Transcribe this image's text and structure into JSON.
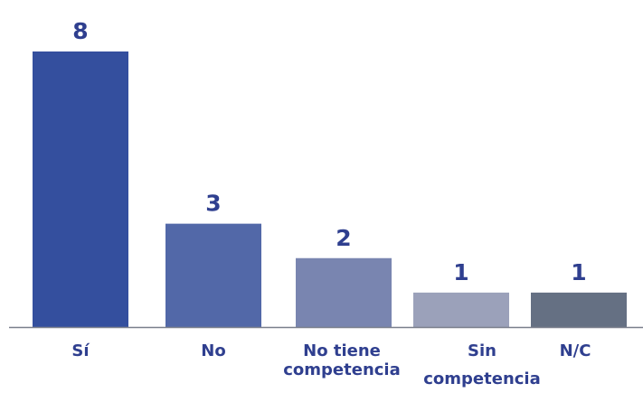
{
  "chart_data": {
    "type": "bar",
    "categories": [
      [
        "Sí"
      ],
      [
        "No"
      ],
      [
        "No tiene",
        "competencia"
      ],
      [
        "Sin",
        "competencia"
      ],
      [
        "N/C"
      ]
    ],
    "values": [
      8,
      3,
      2,
      1,
      1
    ],
    "value_labels": [
      "8",
      "3",
      "2",
      "1",
      "1"
    ],
    "bar_colors": [
      "#344f9e",
      "#5268a8",
      "#7985b0",
      "#9ba1ba",
      "#657083"
    ],
    "label_color": "#2f3f8f",
    "axis_color": "#7a7f8c",
    "ylim": [
      0,
      8
    ],
    "grid": false,
    "legend": "none"
  }
}
